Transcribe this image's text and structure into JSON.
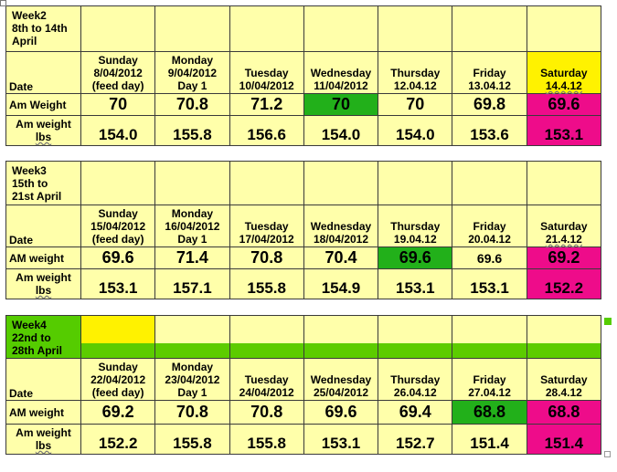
{
  "columns": [
    "Sunday",
    "Monday",
    "Tuesday",
    "Wednesday",
    "Thursday",
    "Friday",
    "Saturday"
  ],
  "weeks": [
    {
      "title": [
        "Week2",
        "8th to 14th",
        "April"
      ],
      "date_label": "Date",
      "dates": [
        [
          "Sunday",
          "8/04/2012",
          "(feed day)"
        ],
        [
          "Monday",
          "9/04/2012",
          "Day 1"
        ],
        [
          "Tuesday",
          "10/04/2012"
        ],
        [
          "Wednesday",
          "11/04/2012"
        ],
        [
          "Thursday",
          "12.04.12"
        ],
        [
          "Friday",
          "13.04.12"
        ],
        [
          "Saturday",
          "14.4.12"
        ]
      ],
      "kg_label": "Am Weight",
      "kg": [
        "70",
        "70.8",
        "71.2",
        "70",
        "70",
        "69.8",
        "69.6"
      ],
      "lbs_label": [
        "Am weight",
        "lbs"
      ],
      "lbs": [
        "154.0",
        "155.8",
        "156.6",
        "154.0",
        "154.0",
        "153.6",
        "153.1"
      ]
    },
    {
      "title": [
        "Week3",
        "15th to",
        "21st April"
      ],
      "date_label": "Date",
      "dates": [
        [
          "Sunday",
          "15/04/2012",
          "(feed day)"
        ],
        [
          "Monday",
          "16/04/2012",
          "Day 1"
        ],
        [
          "Tuesday",
          "17/04/2012"
        ],
        [
          "Wednesday",
          "18/04/2012"
        ],
        [
          "Thursday",
          "19.04.12"
        ],
        [
          "Friday",
          "20.04.12"
        ],
        [
          "Saturday",
          "21.4.12"
        ]
      ],
      "kg_label": "AM weight",
      "kg": [
        "69.6",
        "71.4",
        "70.8",
        "70.4",
        "69.6",
        "69.6",
        "69.2"
      ],
      "lbs_label": [
        "Am weight",
        "lbs"
      ],
      "lbs": [
        "153.1",
        "157.1",
        "155.8",
        "154.9",
        "153.1",
        "153.1",
        "152.2"
      ]
    },
    {
      "title": [
        "Week4",
        "22nd to",
        "28th April"
      ],
      "date_label": "Date",
      "dates": [
        [
          "Sunday",
          "22/04/2012",
          "(feed day)"
        ],
        [
          "Monday",
          "23/04/2012",
          "Day 1"
        ],
        [
          "Tuesday",
          "24/04/2012"
        ],
        [
          "Wednesday",
          "25/04/2012"
        ],
        [
          "Thursday",
          "26.04.12"
        ],
        [
          "Friday",
          "27.04.12"
        ],
        [
          "Saturday",
          "28.4.12"
        ]
      ],
      "kg_label": "AM weight",
      "kg": [
        "69.2",
        "70.8",
        "70.8",
        "69.6",
        "69.4",
        "68.8",
        "68.8"
      ],
      "lbs_label": [
        "Am weight",
        "lbs"
      ],
      "lbs": [
        "152.2",
        "155.8",
        "155.8",
        "153.1",
        "152.7",
        "151.4",
        "151.4"
      ]
    }
  ],
  "colors": {
    "cell": "#ffffaa",
    "highlight_yellow": "#fff200",
    "highlight_green": "#22b01a",
    "highlight_pink": "#ee0c8a",
    "week_green": "#55cc00"
  }
}
